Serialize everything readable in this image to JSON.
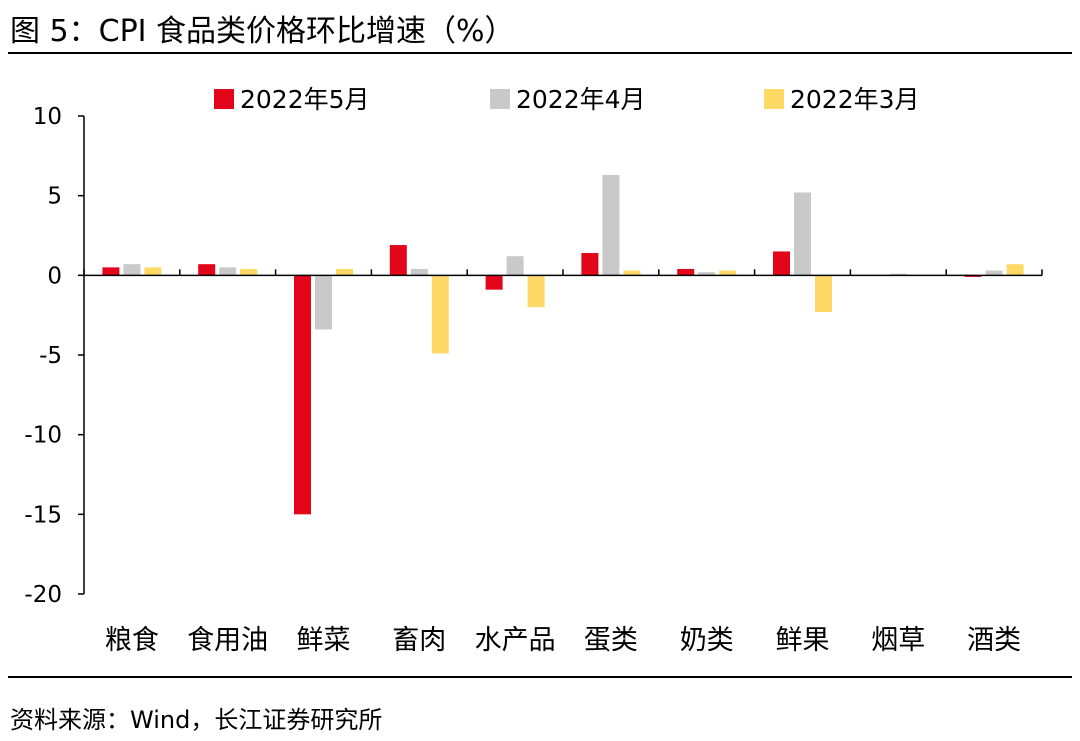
{
  "figure": {
    "title": "图 5：CPI 食品类价格环比增速（%）",
    "source": "资料来源：Wind，长江证券研究所"
  },
  "chart_data": {
    "type": "bar",
    "title": "CPI 食品类价格环比增速（%）",
    "xlabel": "",
    "ylabel": "",
    "ylim": [
      -20,
      10
    ],
    "yticks": [
      10,
      5,
      0,
      -5,
      -10,
      -15,
      -20
    ],
    "grid": false,
    "legend_position": "top",
    "categories": [
      "粮食",
      "食用油",
      "鲜菜",
      "畜肉",
      "水产品",
      "蛋类",
      "奶类",
      "鲜果",
      "烟草",
      "酒类"
    ],
    "series": [
      {
        "name": "2022年5月",
        "color": "#e3061b",
        "values": [
          0.5,
          0.7,
          -15.0,
          1.9,
          -0.9,
          1.4,
          0.4,
          1.5,
          0.0,
          -0.1
        ]
      },
      {
        "name": "2022年4月",
        "color": "#c9c9c9",
        "values": [
          0.7,
          0.5,
          -3.4,
          0.4,
          1.2,
          6.3,
          0.2,
          5.2,
          0.1,
          0.3
        ]
      },
      {
        "name": "2022年3月",
        "color": "#ffd966",
        "values": [
          0.5,
          0.4,
          0.4,
          -4.9,
          -2.0,
          0.3,
          0.3,
          -2.3,
          0.0,
          0.7
        ]
      }
    ]
  }
}
